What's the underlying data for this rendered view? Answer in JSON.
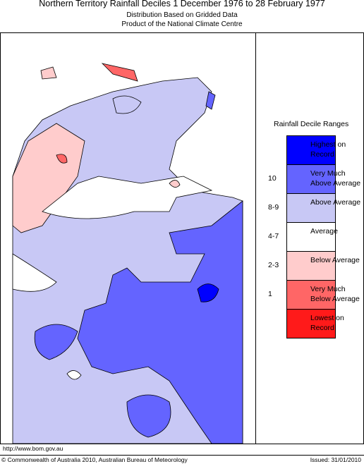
{
  "header": {
    "title": "Northern Territory Rainfall Deciles     1 December 1976 to 28 February 1977",
    "subtitle": [
      "Distribution Based on Gridded Data",
      "Product of the National Climate Centre"
    ]
  },
  "legend": {
    "title": "Rainfall Decile Ranges",
    "items": [
      {
        "label": "Highest on Record",
        "color": "#0000ff"
      },
      {
        "range": "10",
        "label": "Very Much Above Average",
        "color": "#6464ff"
      },
      {
        "range": "8-9",
        "label": "Above Average",
        "color": "#c8c8f5"
      },
      {
        "range": "4-7",
        "label": "Average",
        "color": "#ffffff"
      },
      {
        "range": "2-3",
        "label": "Below Average",
        "color": "#ffcccc"
      },
      {
        "range": "1",
        "label": "Very Much Below Average",
        "color": "#ff6666"
      },
      {
        "label": "Lowest on Record",
        "color": "#ff1a1a"
      }
    ]
  },
  "footer": {
    "url": "http://www.bom.gov.au",
    "copyright": "© Commonwealth of Australia 2010, Australian Bureau of Meteorology",
    "issued": "Issued: 31/01/2010"
  }
}
